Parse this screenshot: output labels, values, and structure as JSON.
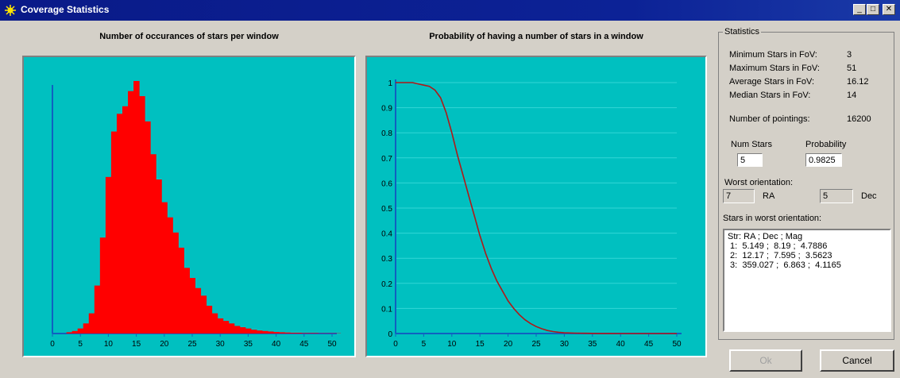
{
  "window": {
    "title": "Coverage Statistics",
    "minimize": "_",
    "maximize": "□",
    "close": "✕"
  },
  "histogram": {
    "title": "Number of occurances of stars per window",
    "x_ticks": [
      "0",
      "5",
      "10",
      "15",
      "20",
      "25",
      "30",
      "35",
      "40",
      "45",
      "50"
    ]
  },
  "probability": {
    "title": "Probability of having a number of stars in a window",
    "x_ticks": [
      "0",
      "5",
      "10",
      "15",
      "20",
      "25",
      "30",
      "35",
      "40",
      "45",
      "50"
    ],
    "y_ticks": [
      "0",
      "0.1",
      "0.2",
      "0.3",
      "0.4",
      "0.5",
      "0.6",
      "0.7",
      "0.8",
      "0.9",
      "1"
    ]
  },
  "chart_data": [
    {
      "type": "bar",
      "title": "Number of occurances of stars per window",
      "xlim": [
        0,
        50
      ],
      "x": [
        3,
        4,
        5,
        6,
        7,
        8,
        9,
        10,
        11,
        12,
        13,
        14,
        15,
        16,
        17,
        18,
        19,
        20,
        21,
        22,
        23,
        24,
        25,
        26,
        27,
        28,
        29,
        30,
        31,
        32,
        33,
        34,
        35,
        36,
        37,
        38,
        39,
        40,
        41,
        42,
        43,
        44,
        45,
        46,
        47,
        48,
        49,
        50,
        51
      ],
      "values": [
        0.5,
        1,
        2,
        4,
        8,
        19,
        38,
        62,
        80,
        87,
        90,
        96,
        100,
        94,
        84,
        71,
        61,
        52,
        46,
        40,
        34,
        26,
        22,
        18,
        15,
        11,
        8,
        6,
        5,
        4,
        3,
        2.5,
        2,
        1.5,
        1.2,
        1,
        0.8,
        0.6,
        0.5,
        0.4,
        0.3,
        0.3,
        0.2,
        0.2,
        0.2,
        0.1,
        0.1,
        0.1,
        0.1
      ]
    },
    {
      "type": "line",
      "title": "Probability of having a number of stars in a window",
      "xlim": [
        0,
        50
      ],
      "ylim": [
        0,
        1
      ],
      "x": [
        0,
        1,
        2,
        3,
        4,
        5,
        6,
        7,
        8,
        9,
        10,
        11,
        12,
        13,
        14,
        15,
        16,
        17,
        18,
        19,
        20,
        21,
        22,
        23,
        24,
        25,
        26,
        27,
        28,
        29,
        30,
        32,
        34,
        36,
        38,
        40,
        45,
        50
      ],
      "y": [
        1,
        1,
        1,
        1,
        0.995,
        0.99,
        0.985,
        0.97,
        0.94,
        0.88,
        0.8,
        0.71,
        0.63,
        0.55,
        0.47,
        0.39,
        0.32,
        0.26,
        0.21,
        0.17,
        0.13,
        0.1,
        0.075,
        0.055,
        0.04,
        0.028,
        0.019,
        0.012,
        0.008,
        0.005,
        0.003,
        0.0015,
        0.0008,
        0.0004,
        0.0002,
        0,
        0,
        0
      ]
    }
  ],
  "statistics": {
    "group_label": "Statistics",
    "min_label": "Minimum Stars in FoV:",
    "min_value": "3",
    "max_label": "Maximum Stars in FoV:",
    "max_value": "51",
    "avg_label": "Average Stars in FoV:",
    "avg_value": "16.12",
    "median_label": "Median Stars in FoV:",
    "median_value": "14",
    "pointings_label": "Number of pointings:",
    "pointings_value": "16200",
    "num_stars_label": "Num Stars",
    "num_stars_value": "5",
    "probability_label": "Probability",
    "probability_value": "0.9825",
    "worst_label": "Worst orientation:",
    "ra_value": "7",
    "ra_label": "RA",
    "dec_value": "5",
    "dec_label": "Dec",
    "stars_worst_label": "Stars in worst orientation:",
    "stars_worst_text": "Str: RA ; Dec ; Mag\n 1:  5.149 ;  8.19 ;  4.7886\n 2:  12.17 ;  7.595 ;  3.5623\n 3:  359.027 ;  6.863 ;  4.1165"
  },
  "buttons": {
    "ok": "Ok",
    "cancel": "Cancel"
  }
}
